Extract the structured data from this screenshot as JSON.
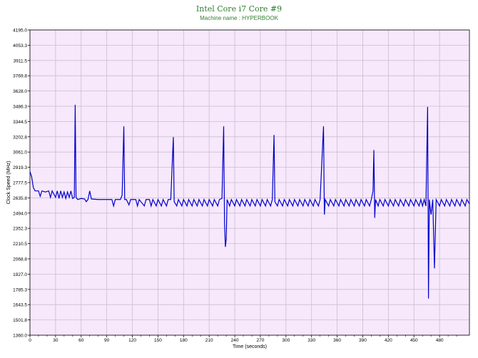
{
  "title": "Intel Core i7 Core #9",
  "subtitle": "Machine name : HYPERBOOK",
  "colors": {
    "plot_bg": "#f7e8fb",
    "grid": "#c9bfd0",
    "line": "#0000cc",
    "axis": "#000000",
    "title": "#2f7f2f"
  },
  "chart_data": {
    "type": "line",
    "xlabel": "Time (seconds)",
    "ylabel": "Clock Speed (MHz)",
    "xlim": [
      0,
      515
    ],
    "ylim": [
      1360.0,
      4195.0
    ],
    "grid": true,
    "x_ticks": [
      "0",
      "30",
      "60",
      "90",
      "120",
      "150",
      "180",
      "210",
      "240",
      "270",
      "300",
      "330",
      "360",
      "390",
      "420",
      "450",
      "480"
    ],
    "y_ticks": [
      "4195.0",
      "4053.3",
      "3911.5",
      "3769.8",
      "3628.0",
      "3486.3",
      "3344.5",
      "3202.8",
      "3061.0",
      "2919.3",
      "2777.5",
      "2635.8",
      "2494.0",
      "2352.3",
      "2210.5",
      "2068.8",
      "1927.0",
      "1785.3",
      "1643.5",
      "1501.8",
      "1360.0"
    ],
    "series": [
      {
        "points": [
          [
            0,
            2880
          ],
          [
            2,
            2830
          ],
          [
            4,
            2730
          ],
          [
            6,
            2700
          ],
          [
            10,
            2700
          ],
          [
            12,
            2650
          ],
          [
            14,
            2700
          ],
          [
            18,
            2690
          ],
          [
            22,
            2700
          ],
          [
            24,
            2640
          ],
          [
            26,
            2700
          ],
          [
            30,
            2640
          ],
          [
            32,
            2700
          ],
          [
            34,
            2630
          ],
          [
            36,
            2700
          ],
          [
            38,
            2640
          ],
          [
            40,
            2690
          ],
          [
            42,
            2630
          ],
          [
            44,
            2690
          ],
          [
            46,
            2640
          ],
          [
            48,
            2700
          ],
          [
            50,
            2630
          ],
          [
            52,
            2640
          ],
          [
            53,
            3500
          ],
          [
            54,
            2640
          ],
          [
            56,
            2620
          ],
          [
            60,
            2630
          ],
          [
            64,
            2625
          ],
          [
            66,
            2600
          ],
          [
            68,
            2620
          ],
          [
            70,
            2700
          ],
          [
            72,
            2625
          ],
          [
            80,
            2620
          ],
          [
            90,
            2620
          ],
          [
            96,
            2620
          ],
          [
            98,
            2560
          ],
          [
            100,
            2620
          ],
          [
            106,
            2620
          ],
          [
            108,
            2660
          ],
          [
            110,
            3300
          ],
          [
            111,
            2620
          ],
          [
            113,
            2620
          ],
          [
            116,
            2570
          ],
          [
            118,
            2620
          ],
          [
            124,
            2620
          ],
          [
            126,
            2560
          ],
          [
            128,
            2620
          ],
          [
            134,
            2560
          ],
          [
            136,
            2620
          ],
          [
            140,
            2620
          ],
          [
            142,
            2560
          ],
          [
            144,
            2620
          ],
          [
            148,
            2560
          ],
          [
            150,
            2620
          ],
          [
            154,
            2560
          ],
          [
            156,
            2620
          ],
          [
            160,
            2560
          ],
          [
            162,
            2620
          ],
          [
            165,
            2620
          ],
          [
            168,
            3200
          ],
          [
            169,
            2600
          ],
          [
            172,
            2560
          ],
          [
            174,
            2620
          ],
          [
            178,
            2560
          ],
          [
            180,
            2620
          ],
          [
            184,
            2560
          ],
          [
            186,
            2620
          ],
          [
            190,
            2560
          ],
          [
            192,
            2620
          ],
          [
            196,
            2560
          ],
          [
            198,
            2620
          ],
          [
            202,
            2560
          ],
          [
            204,
            2620
          ],
          [
            208,
            2560
          ],
          [
            210,
            2620
          ],
          [
            214,
            2560
          ],
          [
            216,
            2620
          ],
          [
            220,
            2560
          ],
          [
            222,
            2620
          ],
          [
            225,
            2630
          ],
          [
            227,
            3300
          ],
          [
            228,
            2400
          ],
          [
            229,
            2180
          ],
          [
            230,
            2250
          ],
          [
            231,
            2620
          ],
          [
            234,
            2560
          ],
          [
            236,
            2620
          ],
          [
            240,
            2560
          ],
          [
            242,
            2620
          ],
          [
            246,
            2560
          ],
          [
            248,
            2620
          ],
          [
            252,
            2560
          ],
          [
            254,
            2620
          ],
          [
            258,
            2560
          ],
          [
            260,
            2620
          ],
          [
            264,
            2560
          ],
          [
            266,
            2620
          ],
          [
            270,
            2560
          ],
          [
            272,
            2620
          ],
          [
            276,
            2560
          ],
          [
            278,
            2620
          ],
          [
            282,
            2560
          ],
          [
            284,
            2620
          ],
          [
            286,
            3220
          ],
          [
            287,
            2600
          ],
          [
            290,
            2560
          ],
          [
            292,
            2620
          ],
          [
            296,
            2560
          ],
          [
            298,
            2620
          ],
          [
            302,
            2560
          ],
          [
            304,
            2620
          ],
          [
            308,
            2560
          ],
          [
            310,
            2620
          ],
          [
            314,
            2560
          ],
          [
            316,
            2620
          ],
          [
            320,
            2560
          ],
          [
            322,
            2620
          ],
          [
            326,
            2560
          ],
          [
            328,
            2620
          ],
          [
            332,
            2560
          ],
          [
            334,
            2620
          ],
          [
            338,
            2560
          ],
          [
            340,
            2620
          ],
          [
            344,
            3300
          ],
          [
            345,
            2480
          ],
          [
            346,
            2620
          ],
          [
            350,
            2560
          ],
          [
            352,
            2620
          ],
          [
            356,
            2560
          ],
          [
            358,
            2620
          ],
          [
            362,
            2560
          ],
          [
            364,
            2620
          ],
          [
            368,
            2560
          ],
          [
            370,
            2620
          ],
          [
            374,
            2560
          ],
          [
            376,
            2620
          ],
          [
            380,
            2560
          ],
          [
            382,
            2620
          ],
          [
            386,
            2560
          ],
          [
            388,
            2620
          ],
          [
            392,
            2560
          ],
          [
            394,
            2620
          ],
          [
            398,
            2560
          ],
          [
            400,
            2620
          ],
          [
            402,
            2700
          ],
          [
            403,
            3080
          ],
          [
            404,
            2450
          ],
          [
            405,
            2620
          ],
          [
            408,
            2560
          ],
          [
            410,
            2620
          ],
          [
            414,
            2560
          ],
          [
            416,
            2620
          ],
          [
            420,
            2560
          ],
          [
            422,
            2620
          ],
          [
            426,
            2560
          ],
          [
            428,
            2620
          ],
          [
            432,
            2560
          ],
          [
            434,
            2620
          ],
          [
            438,
            2560
          ],
          [
            440,
            2620
          ],
          [
            444,
            2560
          ],
          [
            446,
            2620
          ],
          [
            450,
            2560
          ],
          [
            452,
            2620
          ],
          [
            456,
            2560
          ],
          [
            458,
            2620
          ],
          [
            460,
            2560
          ],
          [
            462,
            2620
          ],
          [
            464,
            2560
          ],
          [
            466,
            3480
          ],
          [
            467,
            1700
          ],
          [
            468,
            2620
          ],
          [
            470,
            2480
          ],
          [
            472,
            2620
          ],
          [
            474,
            1980
          ],
          [
            476,
            2620
          ],
          [
            480,
            2560
          ],
          [
            482,
            2620
          ],
          [
            486,
            2560
          ],
          [
            488,
            2620
          ],
          [
            492,
            2560
          ],
          [
            494,
            2620
          ],
          [
            498,
            2560
          ],
          [
            500,
            2620
          ],
          [
            504,
            2560
          ],
          [
            506,
            2620
          ],
          [
            510,
            2560
          ],
          [
            512,
            2620
          ],
          [
            515,
            2580
          ]
        ]
      }
    ]
  }
}
